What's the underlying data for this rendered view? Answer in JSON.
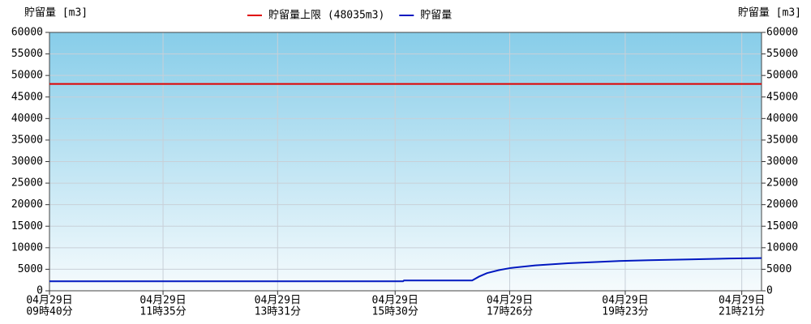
{
  "chart_data": {
    "type": "line",
    "y_label": "貯留量 [m3]",
    "y2_label": "貯留量 [m3]",
    "series": [
      {
        "name": "貯留量上限 (48035m3)",
        "color": "#e00000",
        "x": [
          "04-29 09:40",
          "04-29 21:41"
        ],
        "values": [
          48035,
          48035
        ]
      },
      {
        "name": "貯留量",
        "color": "#0018c0",
        "x": [
          "04-29 09:40",
          "04-29 15:38",
          "04-29 15:39",
          "04-29 16:48",
          "04-29 16:55",
          "04-29 17:03",
          "04-29 17:15",
          "04-29 17:27",
          "04-29 17:52",
          "04-29 18:25",
          "04-29 19:14",
          "04-29 19:47",
          "04-29 20:28",
          "04-29 21:09",
          "04-29 21:41"
        ],
        "values": [
          2200,
          2200,
          2400,
          2400,
          3300,
          4100,
          4800,
          5300,
          5900,
          6400,
          6900,
          7100,
          7300,
          7500,
          7600
        ]
      }
    ],
    "xlim": [
      "04-29 09:40",
      "04-29 21:41"
    ],
    "xticks": [
      {
        "value": "04-29 09:40",
        "label": [
          "04月29日",
          "09時40分"
        ]
      },
      {
        "value": "04-29 11:35",
        "label": [
          "04月29日",
          "11時35分"
        ]
      },
      {
        "value": "04-29 13:31",
        "label": [
          "04月29日",
          "13時31分"
        ]
      },
      {
        "value": "04-29 15:30",
        "label": [
          "04月29日",
          "15時30分"
        ]
      },
      {
        "value": "04-29 17:26",
        "label": [
          "04月29日",
          "17時26分"
        ]
      },
      {
        "value": "04-29 19:23",
        "label": [
          "04月29日",
          "19時23分"
        ]
      },
      {
        "value": "04-29 21:21",
        "label": [
          "04月29日",
          "21時21分"
        ]
      }
    ],
    "ylim": [
      0,
      60000
    ],
    "yticks": [
      0,
      5000,
      10000,
      15000,
      20000,
      25000,
      30000,
      35000,
      40000,
      45000,
      50000,
      55000,
      60000
    ],
    "grid": true,
    "legend": "top"
  }
}
